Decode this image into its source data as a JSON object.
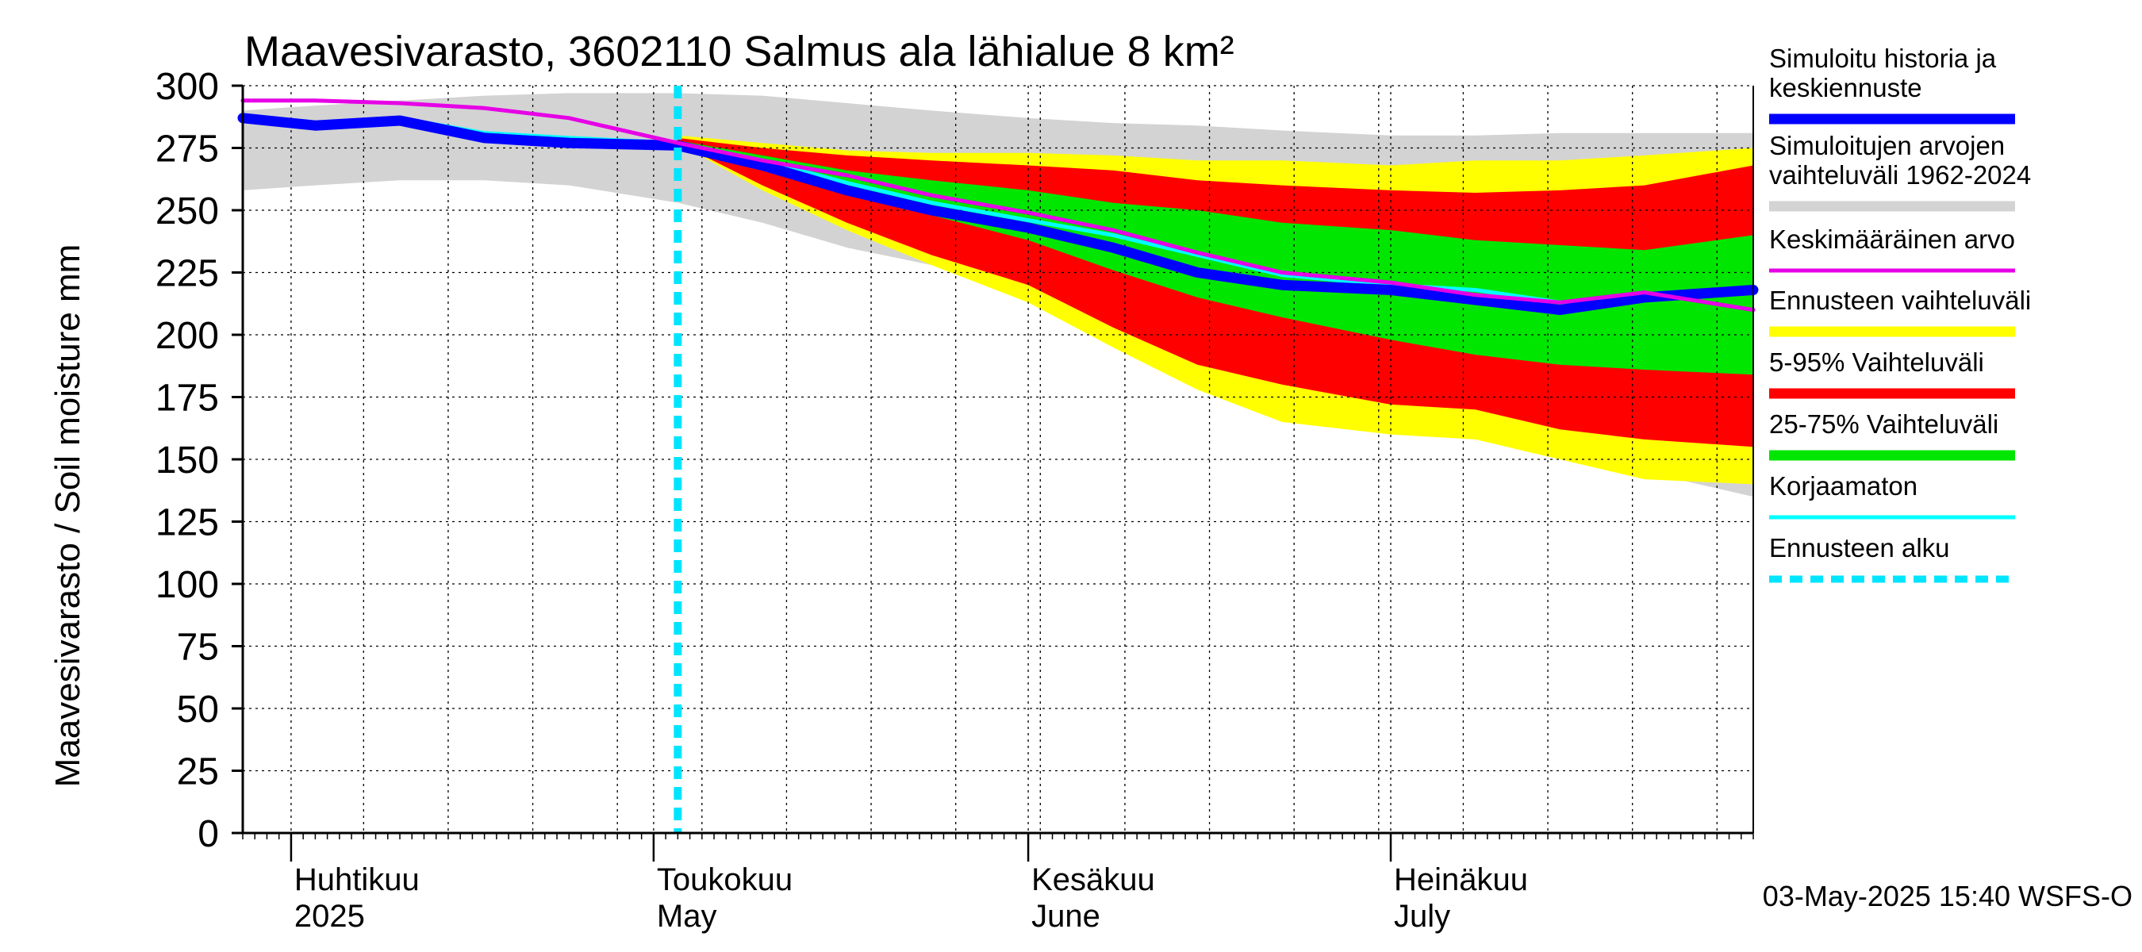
{
  "chart_data": {
    "type": "area",
    "title": "Maavesivarasto, 3602110 Salmus ala lähialue 8 km²",
    "ylabel": "Maavesivarasto / Soil moisture   mm",
    "ylim": [
      0,
      300
    ],
    "yticks": [
      0,
      25,
      50,
      75,
      100,
      125,
      150,
      175,
      200,
      225,
      250,
      275,
      300
    ],
    "xlim": [
      "2025-03-28",
      "2025-07-31"
    ],
    "forecast_start": "2025-05-03",
    "month_labels": [
      {
        "date": "2025-04-01",
        "fi": "Huhtikuu",
        "en": "2025"
      },
      {
        "date": "2025-05-01",
        "fi": "Toukokuu",
        "en": "May"
      },
      {
        "date": "2025-06-01",
        "fi": "Kesäkuu",
        "en": "June"
      },
      {
        "date": "2025-07-01",
        "fi": "Heinäkuu",
        "en": "July"
      }
    ],
    "grid": true,
    "legend_position": "right",
    "legend": [
      {
        "label": "Simuloitu historia ja keskiennuste",
        "color": "#0000ff",
        "style": "thick"
      },
      {
        "label": "Simuloitujen arvojen vaihteluväli 1962-2024",
        "color": "#d3d3d3",
        "style": "band"
      },
      {
        "label": "Keskimääräinen arvo",
        "color": "#e600e6",
        "style": "line"
      },
      {
        "label": "Ennusteen vaihteluväli",
        "color": "#ffff00",
        "style": "band"
      },
      {
        "label": "5-95% Vaihteluväli",
        "color": "#ff0000",
        "style": "band"
      },
      {
        "label": "25-75% Vaihteluväli",
        "color": "#00e600",
        "style": "band"
      },
      {
        "label": "Korjaamaton",
        "color": "#00ffff",
        "style": "line"
      },
      {
        "label": "Ennusteen alku",
        "color": "#00e5ff",
        "style": "dashed"
      }
    ],
    "x": [
      "2025-03-28",
      "2025-04-03",
      "2025-04-10",
      "2025-04-17",
      "2025-04-24",
      "2025-05-03",
      "2025-05-10",
      "2025-05-17",
      "2025-05-24",
      "2025-06-01",
      "2025-06-08",
      "2025-06-15",
      "2025-06-22",
      "2025-07-01",
      "2025-07-08",
      "2025-07-15",
      "2025-07-22",
      "2025-07-31"
    ],
    "series": [
      {
        "key": "history_range",
        "low": [
          258,
          260,
          262,
          262,
          260,
          253,
          245,
          235,
          228,
          220,
          210,
          200,
          185,
          178,
          170,
          155,
          145,
          135
        ],
        "high": [
          290,
          292,
          294,
          296,
          297,
          297,
          296,
          293,
          290,
          287,
          285,
          284,
          282,
          280,
          280,
          281,
          281,
          281
        ]
      },
      {
        "key": "forecast_range",
        "low": [
          null,
          null,
          null,
          null,
          null,
          277,
          258,
          242,
          228,
          213,
          195,
          178,
          165,
          160,
          158,
          150,
          142,
          140
        ],
        "high": [
          null,
          null,
          null,
          null,
          null,
          280,
          277,
          274,
          273,
          273,
          272,
          270,
          270,
          268,
          270,
          270,
          272,
          275
        ]
      },
      {
        "key": "p5_95",
        "low": [
          null,
          null,
          null,
          null,
          null,
          277,
          260,
          245,
          232,
          220,
          203,
          188,
          180,
          172,
          170,
          162,
          158,
          155
        ],
        "high": [
          null,
          null,
          null,
          null,
          null,
          279,
          275,
          272,
          270,
          268,
          266,
          262,
          260,
          258,
          257,
          258,
          260,
          268
        ]
      },
      {
        "key": "p25_75",
        "low": [
          null,
          null,
          null,
          null,
          null,
          276,
          266,
          257,
          248,
          238,
          226,
          215,
          207,
          198,
          192,
          188,
          186,
          184
        ],
        "high": [
          null,
          null,
          null,
          null,
          null,
          278,
          272,
          266,
          262,
          258,
          253,
          250,
          245,
          242,
          238,
          236,
          234,
          240
        ]
      },
      {
        "key": "mean",
        "values": [
          294,
          294,
          293,
          291,
          287,
          277,
          270,
          264,
          256,
          249,
          242,
          233,
          225,
          221,
          216,
          213,
          217,
          210
        ]
      },
      {
        "key": "uncorrected",
        "values": [
          287,
          285,
          287,
          281,
          279,
          277,
          270,
          261,
          253,
          246,
          240,
          232,
          224,
          220,
          218,
          213,
          215,
          217
        ]
      },
      {
        "key": "median",
        "values": [
          287,
          284,
          286,
          279,
          277,
          276,
          268,
          258,
          250,
          243,
          235,
          225,
          220,
          218,
          214,
          210,
          215,
          218
        ]
      }
    ]
  },
  "footer": {
    "timestamp": "03-May-2025 15:40 WSFS-O"
  }
}
